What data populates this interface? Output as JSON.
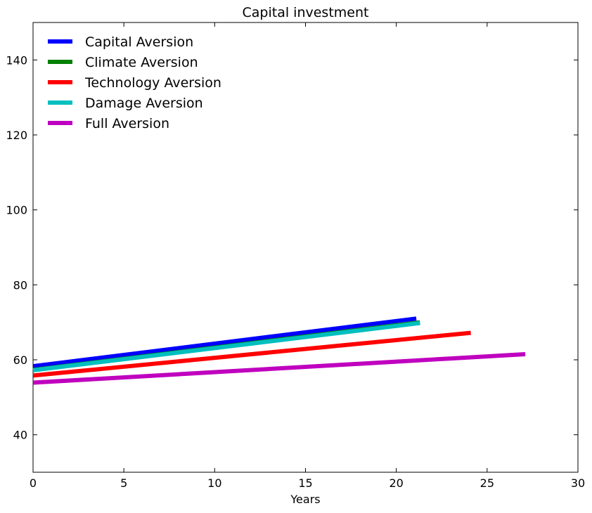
{
  "chart_data": {
    "type": "line",
    "title": "Capital investment",
    "xlabel": "Years",
    "ylabel": "",
    "xlim": [
      0,
      30
    ],
    "ylim": [
      30,
      150
    ],
    "xticks": [
      0,
      5,
      10,
      15,
      20,
      25,
      30
    ],
    "yticks": [
      40,
      60,
      80,
      100,
      120,
      140
    ],
    "xtick_labels": [
      "0",
      "5",
      "10",
      "15",
      "20",
      "25",
      "30"
    ],
    "ytick_labels": [
      "40",
      "60",
      "80",
      "100",
      "120",
      "140"
    ],
    "grid": false,
    "legend_position": "top-left",
    "series": [
      {
        "name": "Capital Aversion",
        "color": "#0000ff",
        "x": [
          0,
          21.1
        ],
        "y": [
          58.3,
          71.0
        ]
      },
      {
        "name": "Climate Aversion",
        "color": "#008000",
        "x": [
          0,
          21.3
        ],
        "y": [
          57.3,
          70.0
        ]
      },
      {
        "name": "Technology Aversion",
        "color": "#ff0000",
        "x": [
          0,
          24.1
        ],
        "y": [
          55.8,
          67.2
        ]
      },
      {
        "name": "Damage Aversion",
        "color": "#00bfbf",
        "x": [
          0,
          21.3
        ],
        "y": [
          57.2,
          69.8
        ]
      },
      {
        "name": "Full Aversion",
        "color": "#bf00bf",
        "x": [
          0,
          27.1
        ],
        "y": [
          53.9,
          61.5
        ]
      }
    ]
  }
}
